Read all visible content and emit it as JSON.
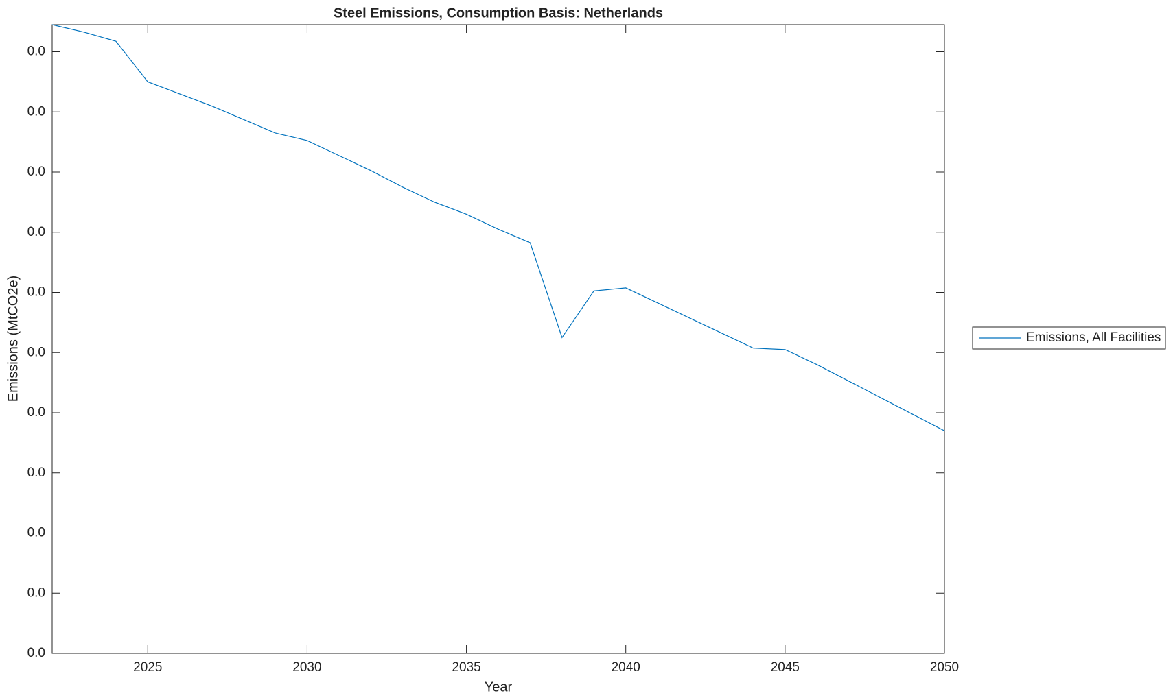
{
  "chart_data": {
    "type": "line",
    "title": "Steel Emissions, Consumption Basis: Netherlands",
    "x_label": "Year",
    "y_label": "Emissions (MtCO2e)",
    "x": [
      2022,
      2023,
      2024,
      2025,
      2026,
      2027,
      2028,
      2029,
      2030,
      2031,
      2032,
      2033,
      2034,
      2035,
      2036,
      2037,
      2038,
      2039,
      2040,
      2041,
      2042,
      2043,
      2044,
      2045,
      2046,
      2047,
      2048,
      2049,
      2050
    ],
    "series": [
      {
        "name": "Emissions, All Facilities",
        "color": "#0072bd",
        "values": [
          0.0418,
          0.0413,
          0.0407,
          0.038,
          0.0372,
          0.0364,
          0.0355,
          0.0346,
          0.0341,
          0.0331,
          0.0321,
          0.031,
          0.03,
          0.0292,
          0.0282,
          0.0273,
          0.021,
          0.0241,
          0.0243,
          0.0233,
          0.0223,
          0.0213,
          0.0203,
          0.0202,
          0.0192,
          0.0181,
          0.017,
          0.0159,
          0.0148
        ]
      }
    ],
    "xlim": [
      2022,
      2050
    ],
    "xticks": [
      2025,
      2030,
      2035,
      2040,
      2045,
      2050
    ],
    "ylim": [
      0,
      0.0418
    ],
    "yticks": [
      {
        "value": 0,
        "label": "0.0"
      },
      {
        "value": 0.004,
        "label": "0.0"
      },
      {
        "value": 0.008,
        "label": "0.0"
      },
      {
        "value": 0.012,
        "label": "0.0"
      },
      {
        "value": 0.016,
        "label": "0.0"
      },
      {
        "value": 0.02,
        "label": "0.0"
      },
      {
        "value": 0.024,
        "label": "0.0"
      },
      {
        "value": 0.028,
        "label": "0.0"
      },
      {
        "value": 0.032,
        "label": "0.0"
      },
      {
        "value": 0.036,
        "label": "0.0"
      },
      {
        "value": 0.04,
        "label": "0.0"
      }
    ],
    "grid": false,
    "legend": "outside-right"
  }
}
